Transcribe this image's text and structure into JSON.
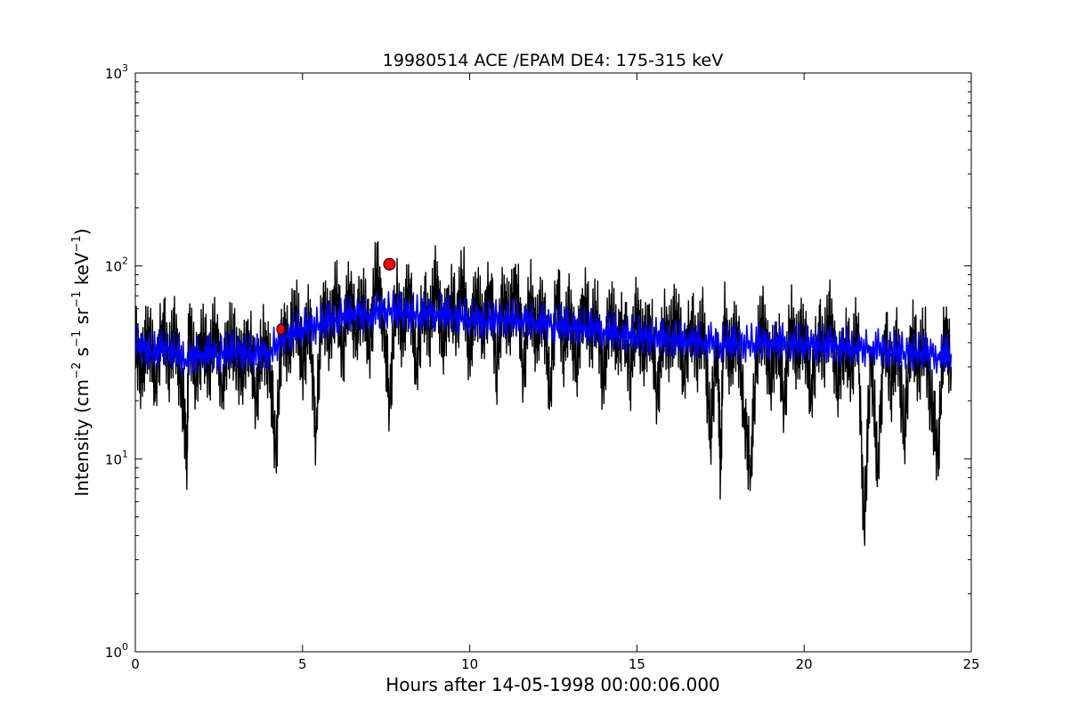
{
  "chart_data": {
    "type": "line",
    "title": "19980514 ACE /EPAM DE4: 175-315 keV",
    "xlabel": "Hours after 14-05-1998 00:00:06.000",
    "ylabel": {
      "main": "Intensity (cm",
      "sup1": "−2",
      "part2": " s",
      "sup2": "−1",
      "part3": " sr",
      "sup3": "−1",
      "part4": " keV",
      "sup4": "−1",
      "end": ")"
    },
    "xlim": [
      0,
      25
    ],
    "ylim": [
      1,
      1000
    ],
    "yscale": "log",
    "grid": false,
    "x_ticks": [
      {
        "value": 0,
        "label": "0"
      },
      {
        "value": 5,
        "label": "5"
      },
      {
        "value": 10,
        "label": "10"
      },
      {
        "value": 15,
        "label": "15"
      },
      {
        "value": 20,
        "label": "20"
      },
      {
        "value": 25,
        "label": "25"
      }
    ],
    "y_ticks": [
      {
        "value": 1,
        "base": "10",
        "exp": "0"
      },
      {
        "value": 10,
        "base": "10",
        "exp": "1"
      },
      {
        "value": 100,
        "base": "10",
        "exp": "2"
      },
      {
        "value": 1000,
        "base": "10",
        "exp": "3"
      }
    ],
    "series": [
      {
        "color": "#000000",
        "x": [
          0.0,
          0.2,
          0.4,
          0.6,
          0.8,
          1.0,
          1.2,
          1.4,
          1.55,
          1.6,
          1.8,
          2.0,
          2.2,
          2.4,
          2.6,
          2.8,
          3.0,
          3.2,
          3.4,
          3.6,
          3.8,
          4.0,
          4.2,
          4.4,
          4.6,
          4.8,
          5.0,
          5.2,
          5.4,
          5.6,
          5.8,
          6.0,
          6.2,
          6.4,
          6.6,
          6.8,
          7.0,
          7.2,
          7.4,
          7.6,
          7.8,
          8.0,
          8.2,
          8.4,
          8.6,
          8.8,
          9.0,
          9.2,
          9.4,
          9.6,
          9.8,
          10.0,
          10.2,
          10.4,
          10.6,
          10.8,
          11.0,
          11.2,
          11.4,
          11.6,
          11.8,
          12.0,
          12.2,
          12.4,
          12.6,
          12.8,
          13.0,
          13.2,
          13.4,
          13.6,
          13.8,
          14.0,
          14.2,
          14.4,
          14.6,
          14.8,
          15.0,
          15.2,
          15.4,
          15.6,
          15.8,
          16.0,
          16.2,
          16.4,
          16.6,
          16.8,
          17.0,
          17.2,
          17.4,
          17.5,
          17.6,
          17.8,
          18.0,
          18.2,
          18.4,
          18.6,
          18.8,
          19.0,
          19.2,
          19.4,
          19.6,
          19.8,
          20.0,
          20.2,
          20.4,
          20.6,
          20.8,
          21.0,
          21.2,
          21.4,
          21.6,
          21.8,
          22.0,
          22.2,
          22.4,
          22.6,
          22.8,
          23.0,
          23.2,
          23.4,
          23.6,
          23.8,
          24.0,
          24.2,
          24.4
        ],
        "y": [
          40,
          28,
          48,
          25,
          52,
          32,
          45,
          22,
          11,
          55,
          26,
          42,
          30,
          50,
          24,
          44,
          36,
          28,
          46,
          21,
          40,
          33,
          11,
          50,
          38,
          62,
          30,
          55,
          14,
          68,
          42,
          75,
          35,
          80,
          45,
          70,
          38,
          95,
          58,
          20,
          72,
          45,
          80,
          30,
          65,
          48,
          85,
          40,
          70,
          52,
          88,
          35,
          75,
          45,
          82,
          30,
          68,
          50,
          90,
          28,
          72,
          42,
          65,
          22,
          80,
          38,
          60,
          30,
          70,
          45,
          58,
          25,
          62,
          40,
          52,
          28,
          60,
          35,
          55,
          22,
          48,
          40,
          58,
          28,
          52,
          36,
          50,
          13,
          45,
          8.5,
          55,
          32,
          48,
          18,
          9,
          40,
          50,
          26,
          45,
          20,
          52,
          35,
          48,
          22,
          44,
          38,
          55,
          24,
          42,
          30,
          50,
          4.2,
          38,
          8.5,
          46,
          25,
          40,
          13,
          48,
          30,
          42,
          20,
          10.5,
          52,
          30
        ],
        "noise": [
          0.17,
          -0.12,
          0.21,
          -0.08,
          0.05,
          -0.19,
          0.14,
          -0.03,
          0.11,
          -0.16,
          0.09,
          -0.22,
          0.18,
          -0.06,
          0.02,
          -0.14,
          0.2,
          -0.1,
          0.07,
          -0.18
        ]
      },
      {
        "color": "#0000ff",
        "x": [
          0.0,
          0.5,
          1.0,
          1.5,
          2.0,
          2.5,
          3.0,
          3.5,
          4.0,
          4.5,
          5.0,
          5.5,
          6.0,
          6.5,
          7.0,
          7.5,
          8.0,
          8.5,
          9.0,
          9.5,
          10.0,
          10.5,
          11.0,
          11.5,
          12.0,
          12.5,
          13.0,
          13.5,
          14.0,
          14.5,
          15.0,
          15.5,
          16.0,
          16.5,
          17.0,
          17.5,
          18.0,
          18.5,
          19.0,
          19.5,
          20.0,
          20.5,
          21.0,
          21.5,
          22.0,
          22.5,
          23.0,
          23.5,
          24.0,
          24.4
        ],
        "y": [
          40,
          36,
          38,
          33,
          36,
          35,
          37,
          35,
          36,
          44,
          48,
          50,
          54,
          58,
          56,
          60,
          58,
          56,
          58,
          56,
          54,
          52,
          54,
          53,
          52,
          50,
          49,
          48,
          47,
          45,
          44,
          43,
          42,
          42,
          41,
          40,
          40,
          40,
          41,
          40,
          40,
          39,
          39,
          38,
          38,
          37,
          36,
          36,
          35,
          35
        ],
        "noise": [
          0.08,
          -0.06,
          0.1,
          -0.04,
          0.03,
          -0.09,
          0.07,
          -0.02,
          0.05,
          -0.08,
          0.04,
          -0.1,
          0.09,
          -0.03,
          0.01,
          -0.07,
          0.1,
          -0.05,
          0.03,
          -0.09
        ]
      }
    ],
    "markers": [
      {
        "x": 4.35,
        "y": 47,
        "color": "#ff0000",
        "size": "small"
      },
      {
        "x": 7.6,
        "y": 102,
        "color": "#ff0000",
        "size": "large"
      }
    ]
  }
}
